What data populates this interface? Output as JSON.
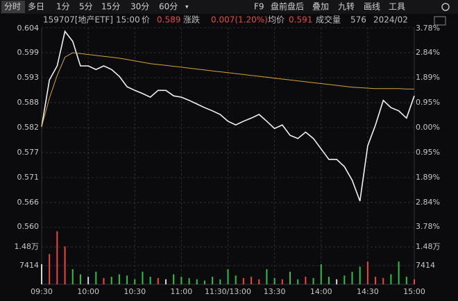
{
  "toolbar": {
    "tabs": [
      "分时",
      "多日",
      "1分",
      "5分",
      "15分",
      "30分",
      "60分"
    ],
    "tools": [
      "F9",
      "盘前盘后",
      "叠加",
      "九转",
      "画线",
      "工具"
    ]
  },
  "info": {
    "code": "159707[地产ETF]",
    "time": "15:00",
    "price_label": "价",
    "price": "0.589",
    "change_label": "涨跌",
    "change": "0.007(1.20%)",
    "avg_label": "均价",
    "avg": "0.591",
    "volume_label": "成交量",
    "volume": "576",
    "date": "2024/02"
  },
  "chart_data": [
    {
      "type": "line",
      "x": [
        0,
        5,
        10,
        15,
        20,
        25,
        30,
        35,
        40,
        45,
        50,
        55,
        60,
        65,
        70,
        75,
        80,
        85,
        90,
        95,
        100,
        105,
        110,
        115,
        120,
        125,
        130,
        135,
        140,
        145,
        150,
        155,
        160,
        165,
        170,
        175,
        180,
        185,
        190,
        195,
        200,
        205,
        210,
        215,
        220,
        225,
        230,
        235,
        240
      ],
      "xlim": [
        0,
        240
      ],
      "xticks": [
        {
          "value": 0,
          "label": "09:30"
        },
        {
          "value": 30,
          "label": "10:00"
        },
        {
          "value": 60,
          "label": "10:30"
        },
        {
          "value": 90,
          "label": "11:00"
        },
        {
          "value": 120,
          "label": "11:30/13:00"
        },
        {
          "value": 150,
          "label": "13:30"
        },
        {
          "value": 180,
          "label": "14:00"
        },
        {
          "value": 210,
          "label": "14:30"
        },
        {
          "value": 240,
          "label": "15:00"
        }
      ],
      "ylim": [
        0.56,
        0.604
      ],
      "yticks": [
        {
          "value": 0.604,
          "label": "0.604"
        },
        {
          "value": 0.5985,
          "label": "0.599"
        },
        {
          "value": 0.593,
          "label": "0.593"
        },
        {
          "value": 0.5875,
          "label": "0.588"
        },
        {
          "value": 0.582,
          "label": "0.582"
        },
        {
          "value": 0.5765,
          "label": "0.577"
        },
        {
          "value": 0.571,
          "label": "0.571"
        },
        {
          "value": 0.5655,
          "label": "0.566"
        },
        {
          "value": 0.56,
          "label": "0.560"
        }
      ],
      "y2lim": [
        -3.78,
        3.78
      ],
      "y2ticks": [
        {
          "value": 3.78,
          "label": "3.78%"
        },
        {
          "value": 2.835,
          "label": "2.84%"
        },
        {
          "value": 1.89,
          "label": "1.89%"
        },
        {
          "value": 0.945,
          "label": "0.95%"
        },
        {
          "value": 0,
          "label": "0.00%"
        },
        {
          "value": -0.945,
          "label": "0.95%"
        },
        {
          "value": -1.89,
          "label": "1.89%"
        },
        {
          "value": -2.835,
          "label": "2.84%"
        },
        {
          "value": -3.78,
          "label": "3.78%"
        }
      ],
      "up_color": "#f0453f",
      "down_color": "#2fbf4a",
      "flat_color": "#d8d8d8",
      "grid": true,
      "series": [
        {
          "name": "价",
          "color": "#f2f2f2",
          "values": [
            0.5822,
            0.5925,
            0.5956,
            0.6032,
            0.601,
            0.5956,
            0.5956,
            0.5948,
            0.5956,
            0.5948,
            0.5933,
            0.591,
            0.5902,
            0.5895,
            0.5887,
            0.5902,
            0.5902,
            0.589,
            0.5887,
            0.588,
            0.5872,
            0.5864,
            0.5857,
            0.5849,
            0.5834,
            0.5826,
            0.5834,
            0.5841,
            0.5849,
            0.5834,
            0.5818,
            0.5826,
            0.5803,
            0.5796,
            0.581,
            0.5796,
            0.5773,
            0.575,
            0.575,
            0.5734,
            0.5704,
            0.5658,
            0.578,
            0.5826,
            0.588,
            0.5864,
            0.5857,
            0.5841,
            0.589
          ]
        },
        {
          "name": "均价",
          "color": "#d8a23e",
          "values": [
            0.5822,
            0.5885,
            0.5935,
            0.5975,
            0.5985,
            0.5983,
            0.5981,
            0.5979,
            0.5977,
            0.5975,
            0.5973,
            0.597,
            0.5967,
            0.5964,
            0.5961,
            0.5959,
            0.5957,
            0.5955,
            0.5953,
            0.5951,
            0.5949,
            0.5947,
            0.5945,
            0.5943,
            0.5941,
            0.5939,
            0.5937,
            0.5935,
            0.5933,
            0.5931,
            0.5929,
            0.5927,
            0.5925,
            0.5923,
            0.5921,
            0.5919,
            0.5917,
            0.5915,
            0.5913,
            0.5911,
            0.5909,
            0.5908,
            0.5907,
            0.5906,
            0.5906,
            0.5906,
            0.5906,
            0.5905,
            0.5905
          ]
        }
      ]
    },
    {
      "type": "bar",
      "ylim": [
        0,
        22242
      ],
      "yticks": [
        {
          "value": 14828,
          "label": "1.48万"
        },
        7414
      ],
      "values": [
        8000,
        12000,
        21000,
        15000,
        6000,
        4000,
        3000,
        5000,
        2500,
        3000,
        4000,
        3500,
        2000,
        5000,
        3000,
        2500,
        2000,
        4000,
        3000,
        2500,
        2000,
        1500,
        3000,
        2000,
        6000,
        3500,
        2500,
        3000,
        2000,
        6000,
        2500,
        2000,
        5000,
        2000,
        3000,
        2500,
        8000,
        3000,
        2000,
        3500,
        5000,
        7000,
        9000,
        3000,
        2500,
        4000,
        9000,
        3000,
        2000
      ]
    }
  ]
}
